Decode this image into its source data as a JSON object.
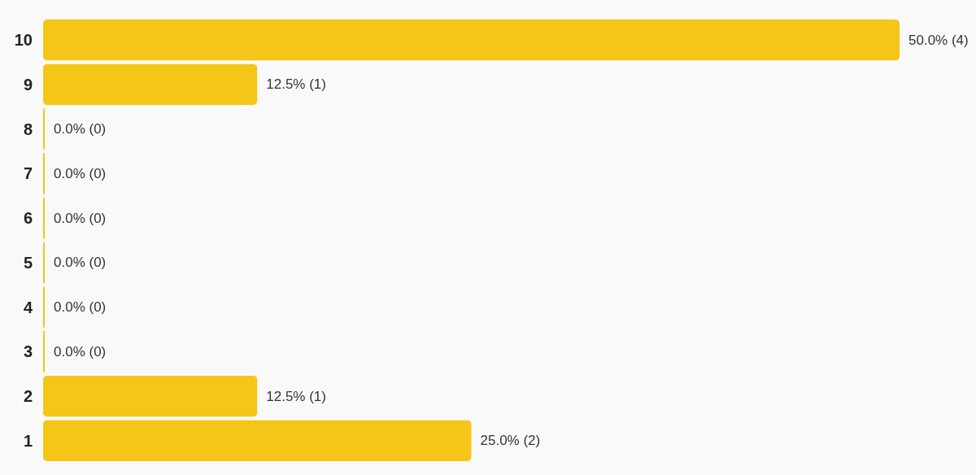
{
  "chart_data": {
    "type": "bar",
    "orientation": "horizontal",
    "categories": [
      "10",
      "9",
      "8",
      "7",
      "6",
      "5",
      "4",
      "3",
      "2",
      "1"
    ],
    "values": [
      4,
      1,
      0,
      0,
      0,
      0,
      0,
      0,
      1,
      2
    ],
    "value_labels": [
      "50.0% (4)",
      "12.5% (1)",
      "0.0% (0)",
      "0.0% (0)",
      "0.0% (0)",
      "0.0% (0)",
      "0.0% (0)",
      "0.0% (0)",
      "12.5% (1)",
      "25.0% (2)"
    ],
    "color": "#f5c518"
  }
}
